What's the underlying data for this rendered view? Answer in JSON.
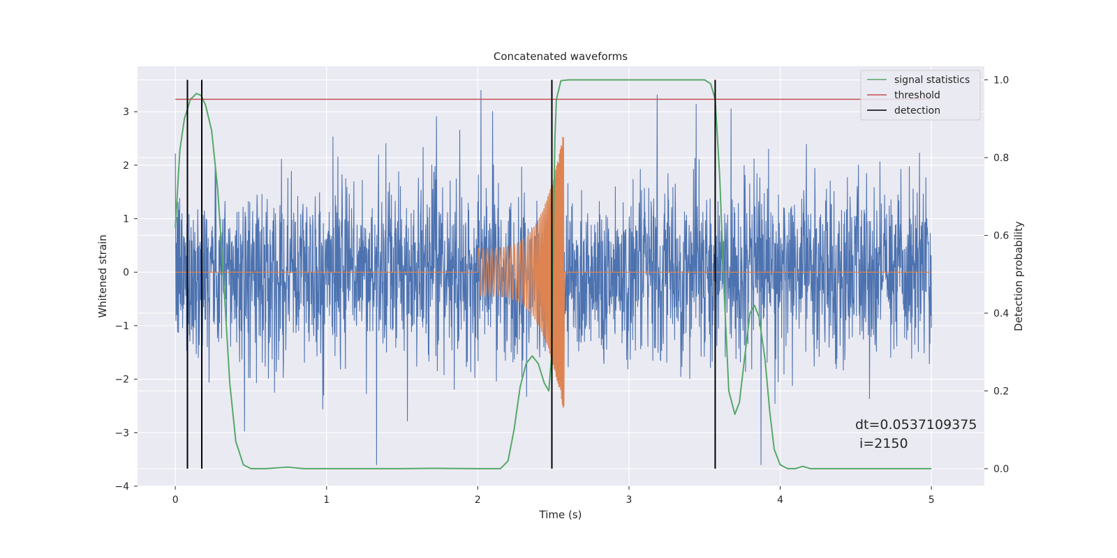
{
  "chart_data": {
    "type": "line",
    "title": "Concatenated waveforms",
    "xlabel": "Time (s)",
    "ylabel_left": "Whitened strain",
    "ylabel_right": "Detection probability",
    "xlim": [
      -0.25,
      5.35
    ],
    "ylim_left": [
      -4,
      3.85
    ],
    "ylim_right": [
      -0.045,
      1.035
    ],
    "x_ticks": [
      "0",
      "1",
      "2",
      "3",
      "4",
      "5"
    ],
    "y_ticks_left": [
      "−4",
      "−3",
      "−2",
      "−1",
      "0",
      "1",
      "2",
      "3"
    ],
    "y_ticks_right": [
      "0.0",
      "0.2",
      "0.4",
      "0.6",
      "0.8",
      "1.0"
    ],
    "grid": true,
    "legend_position": "top-right",
    "legend": [
      "signal statistics",
      "threshold",
      "detection"
    ],
    "colors": {
      "strain": "#4c72b0",
      "injection": "#dd8452",
      "signal_statistics": "#55a868",
      "threshold": "#c44e52",
      "detection": "#000000",
      "background": "#eaeaf2",
      "grid": "#ffffff"
    },
    "series": [
      {
        "axis": "left",
        "description_style": "noise",
        "x_range": [
          0,
          5
        ],
        "typical_amplitude": 0.8,
        "peak_amplitude": 3.4
      },
      {
        "axis": "left",
        "chirp_start": 2.0,
        "chirp_end": 2.57,
        "start_amplitude": 0.45,
        "end_amplitude": 2.65
      },
      {
        "name": "signal statistics",
        "axis": "right",
        "x": [
          0.0,
          0.03,
          0.06,
          0.1,
          0.14,
          0.17,
          0.2,
          0.24,
          0.28,
          0.32,
          0.36,
          0.4,
          0.45,
          0.5,
          0.6,
          0.74,
          0.85,
          1.0,
          1.5,
          1.7,
          2.0,
          2.15,
          2.2,
          2.24,
          2.28,
          2.32,
          2.36,
          2.4,
          2.44,
          2.47,
          2.49,
          2.5,
          2.51,
          2.52,
          2.55,
          2.6,
          3.0,
          3.5,
          3.54,
          3.57,
          3.6,
          3.63,
          3.66,
          3.7,
          3.73,
          3.76,
          3.8,
          3.83,
          3.86,
          3.9,
          3.93,
          3.96,
          4.0,
          4.05,
          4.1,
          4.15,
          4.2,
          4.5,
          5.0
        ],
        "y": [
          0.62,
          0.82,
          0.9,
          0.95,
          0.965,
          0.96,
          0.935,
          0.87,
          0.72,
          0.48,
          0.22,
          0.07,
          0.01,
          0.0,
          0.0,
          0.004,
          0.0,
          0.0,
          0.0,
          0.001,
          0.0,
          0.0,
          0.02,
          0.1,
          0.21,
          0.27,
          0.29,
          0.27,
          0.22,
          0.2,
          0.3,
          0.6,
          0.85,
          0.95,
          0.998,
          1.0,
          1.0,
          1.0,
          0.99,
          0.95,
          0.75,
          0.45,
          0.2,
          0.14,
          0.17,
          0.27,
          0.4,
          0.42,
          0.39,
          0.28,
          0.15,
          0.05,
          0.01,
          0.0,
          0.0,
          0.006,
          0.0,
          0.0,
          0.0
        ]
      },
      {
        "name": "threshold",
        "axis": "right",
        "x": [
          0,
          5
        ],
        "y": [
          0.95,
          0.95
        ]
      },
      {
        "name": "detection",
        "axis": "right",
        "x": [
          0.08,
          0.175,
          2.49,
          3.57
        ],
        "y_range": [
          0.0,
          1.0
        ]
      }
    ],
    "annotation": {
      "line1": "dt=0.0537109375",
      "line2": " i=2150"
    }
  }
}
